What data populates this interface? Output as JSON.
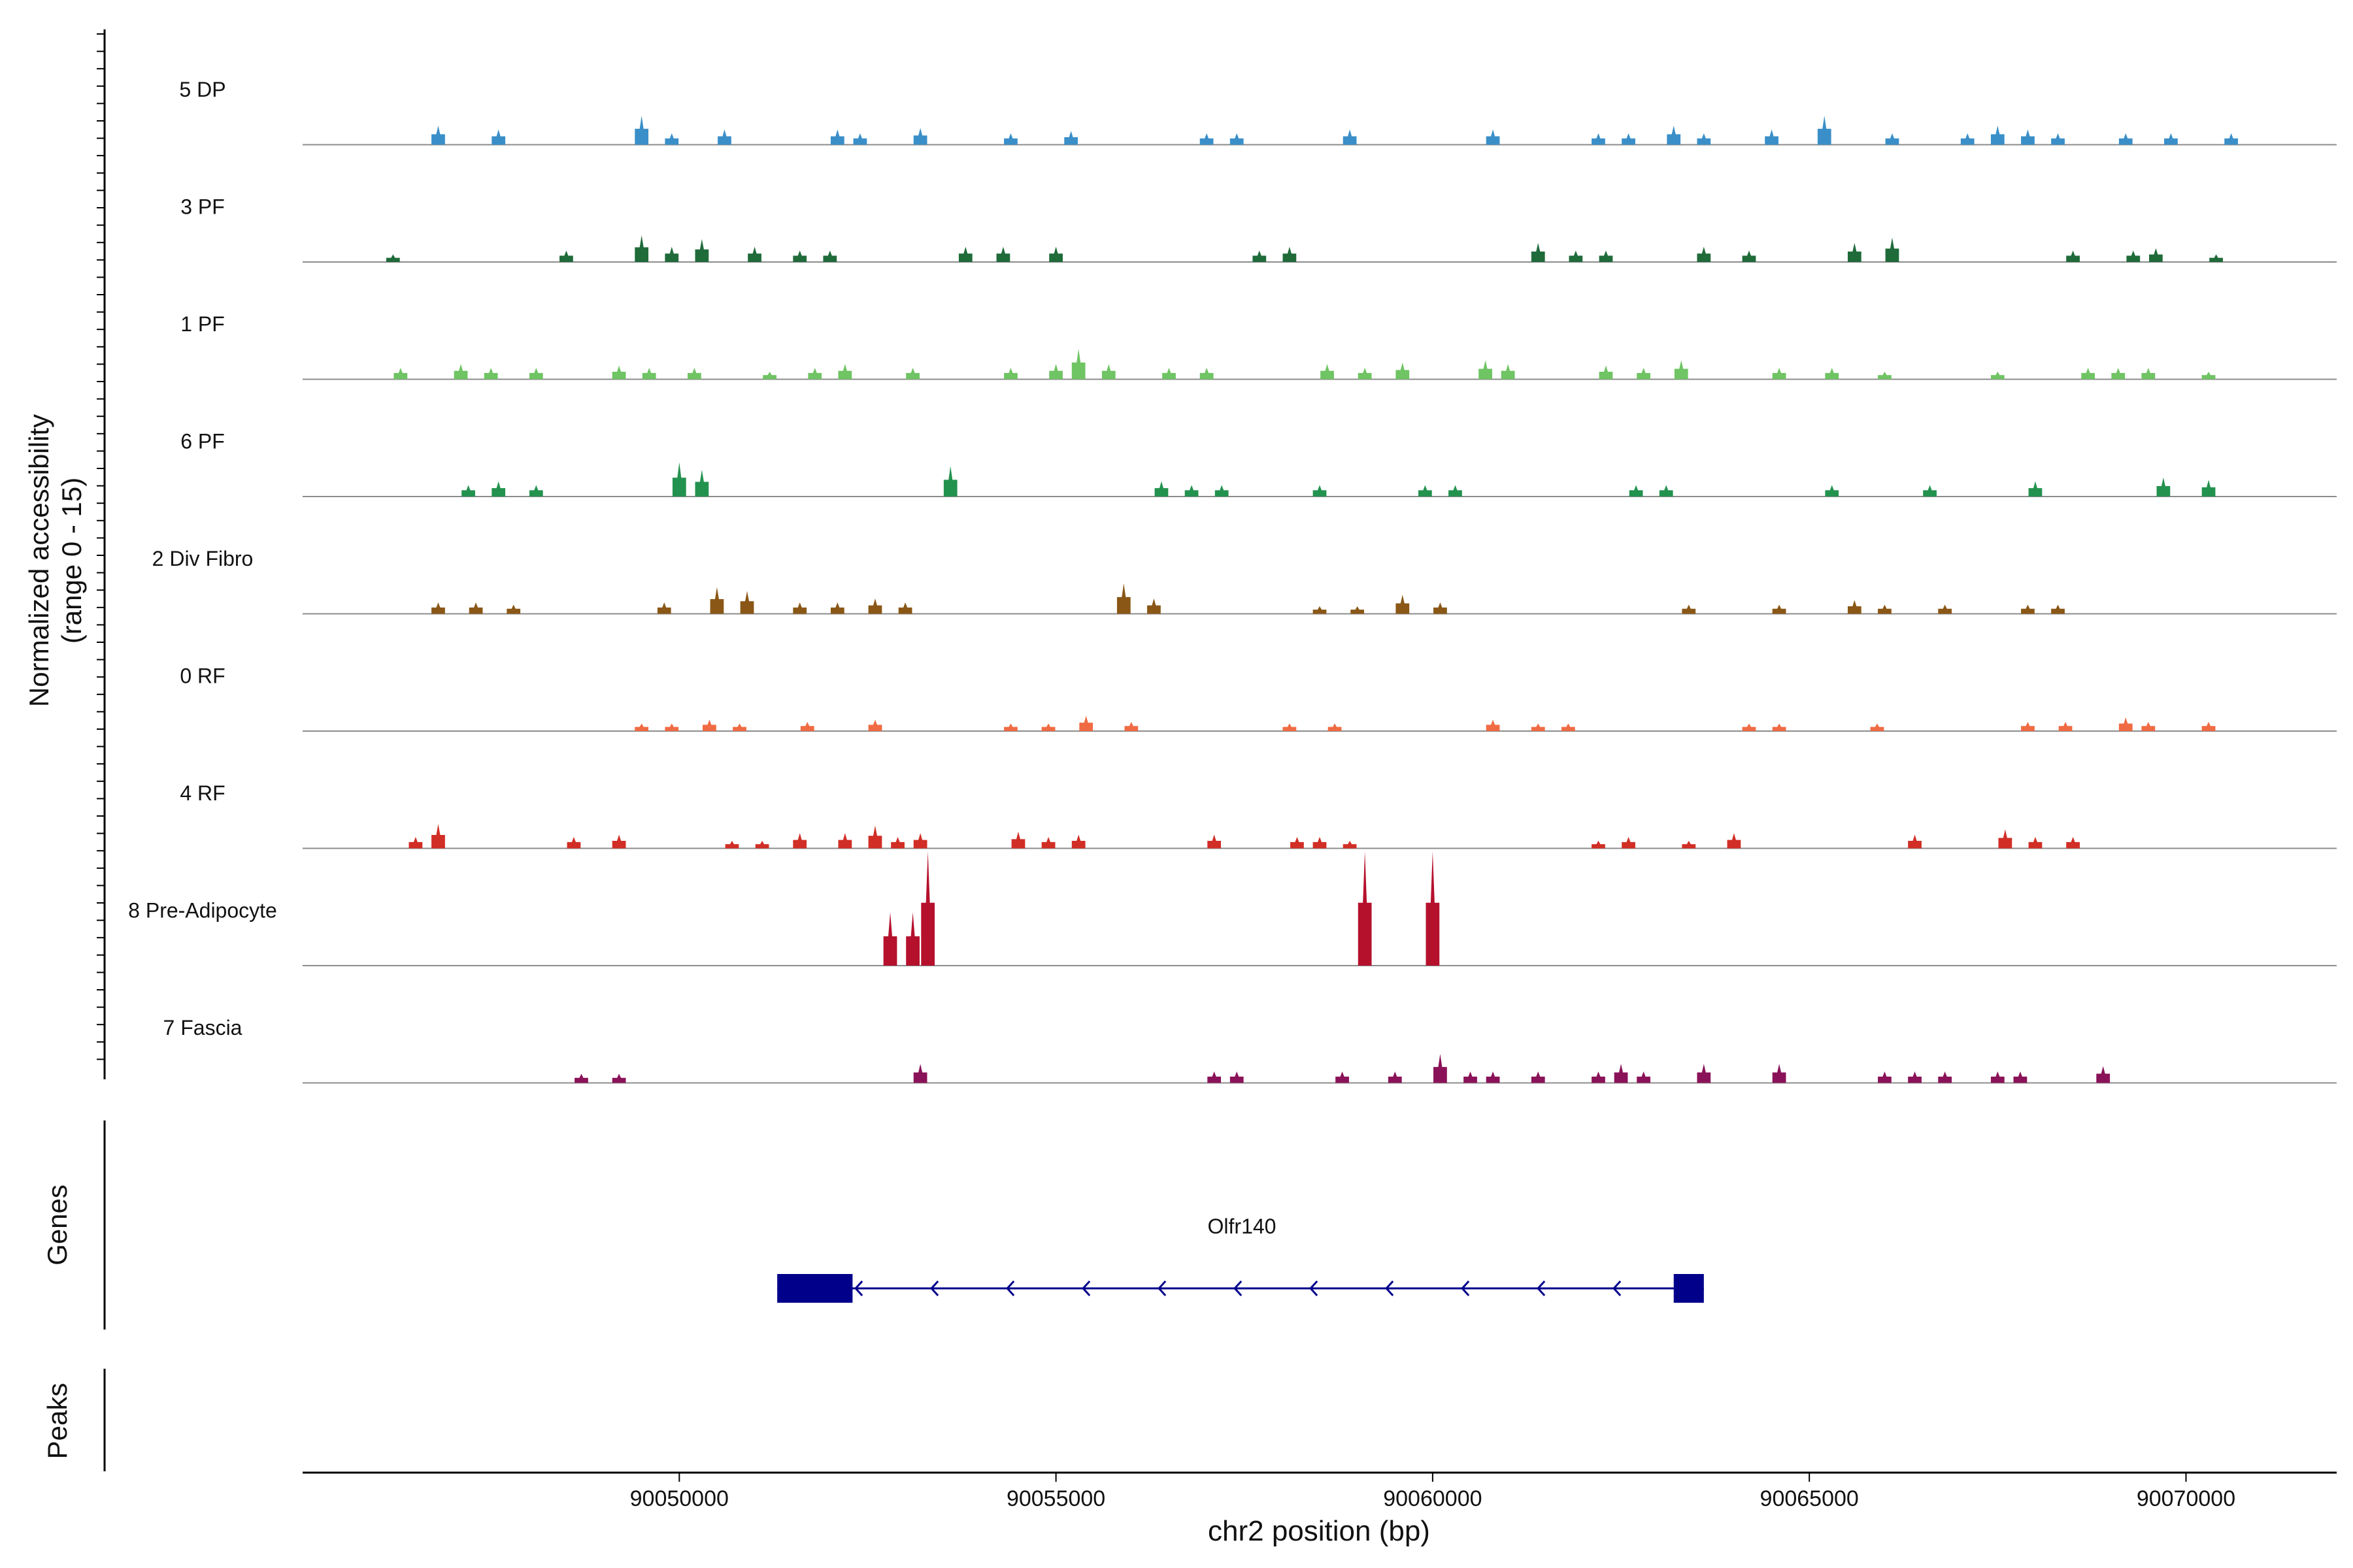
{
  "chart_data": {
    "type": "area",
    "title": "",
    "xlabel": "chr2 position (bp)",
    "xlim": [
      90045000,
      90072000
    ],
    "x_ticks": [
      90050000,
      90055000,
      90060000,
      90065000,
      90070000
    ],
    "x_tick_labels": [
      "90050000",
      "90055000",
      "90060000",
      "90065000",
      "90070000"
    ],
    "coverage_ylabel": [
      "Normalized accessibility",
      "(range 0 - 15)"
    ],
    "ylim": [
      0,
      15
    ],
    "genes_label": "Genes",
    "peaks_label": "Peaks",
    "tracks": [
      {
        "name": "5 DP",
        "color": "#3a8fc9",
        "peaks": [
          [
            90046800,
            2.5
          ],
          [
            90047600,
            2
          ],
          [
            90049500,
            3.8
          ],
          [
            90049900,
            1.5
          ],
          [
            90050600,
            2
          ],
          [
            90052100,
            2
          ],
          [
            90052400,
            1.5
          ],
          [
            90053200,
            2.2
          ],
          [
            90054400,
            1.5
          ],
          [
            90055200,
            1.8
          ],
          [
            90057000,
            1.5
          ],
          [
            90057400,
            1.5
          ],
          [
            90058900,
            2
          ],
          [
            90060800,
            2
          ],
          [
            90062200,
            1.5
          ],
          [
            90062600,
            1.5
          ],
          [
            90063200,
            2.5
          ],
          [
            90063600,
            1.5
          ],
          [
            90064500,
            2
          ],
          [
            90065200,
            3.8
          ],
          [
            90066100,
            1.5
          ],
          [
            90067100,
            1.5
          ],
          [
            90067500,
            2.5
          ],
          [
            90067900,
            2
          ],
          [
            90068300,
            1.5
          ],
          [
            90069200,
            1.5
          ],
          [
            90069800,
            1.5
          ],
          [
            90070600,
            1.5
          ]
        ]
      },
      {
        "name": "3 PF",
        "color": "#1f6b3a",
        "peaks": [
          [
            90046200,
            1
          ],
          [
            90048500,
            1.5
          ],
          [
            90049500,
            3.5
          ],
          [
            90049900,
            2
          ],
          [
            90050300,
            3
          ],
          [
            90051000,
            2
          ],
          [
            90051600,
            1.5
          ],
          [
            90052000,
            1.5
          ],
          [
            90053800,
            2
          ],
          [
            90054300,
            2
          ],
          [
            90055000,
            2
          ],
          [
            90057700,
            1.5
          ],
          [
            90058100,
            2
          ],
          [
            90061400,
            2.5
          ],
          [
            90061900,
            1.5
          ],
          [
            90062300,
            1.5
          ],
          [
            90063600,
            2
          ],
          [
            90064200,
            1.5
          ],
          [
            90065600,
            2.5
          ],
          [
            90066100,
            3.2
          ],
          [
            90068500,
            1.5
          ],
          [
            90069300,
            1.5
          ],
          [
            90069600,
            1.8
          ],
          [
            90070400,
            1
          ]
        ]
      },
      {
        "name": "1 PF",
        "color": "#6fc463",
        "peaks": [
          [
            90046300,
            1.5
          ],
          [
            90047100,
            2
          ],
          [
            90047500,
            1.5
          ],
          [
            90048100,
            1.5
          ],
          [
            90049200,
            1.8
          ],
          [
            90049600,
            1.5
          ],
          [
            90050200,
            1.5
          ],
          [
            90051200,
            1
          ],
          [
            90051800,
            1.5
          ],
          [
            90052200,
            2
          ],
          [
            90053100,
            1.5
          ],
          [
            90054400,
            1.5
          ],
          [
            90055000,
            2
          ],
          [
            90055300,
            4
          ],
          [
            90055700,
            2
          ],
          [
            90056500,
            1.5
          ],
          [
            90057000,
            1.5
          ],
          [
            90058600,
            2
          ],
          [
            90059100,
            1.5
          ],
          [
            90059600,
            2.2
          ],
          [
            90060700,
            2.5
          ],
          [
            90061000,
            2
          ],
          [
            90062300,
            1.8
          ],
          [
            90062800,
            1.5
          ],
          [
            90063300,
            2.5
          ],
          [
            90064600,
            1.5
          ],
          [
            90065300,
            1.5
          ],
          [
            90066000,
            1
          ],
          [
            90067500,
            1
          ],
          [
            90068700,
            1.5
          ],
          [
            90069100,
            1.5
          ],
          [
            90069500,
            1.5
          ],
          [
            90070300,
            1
          ]
        ]
      },
      {
        "name": "6 PF",
        "color": "#24924f",
        "peaks": [
          [
            90047200,
            1.5
          ],
          [
            90047600,
            2
          ],
          [
            90048100,
            1.5
          ],
          [
            90050000,
            4.5
          ],
          [
            90050300,
            3.5
          ],
          [
            90053600,
            4
          ],
          [
            90056400,
            2
          ],
          [
            90056800,
            1.5
          ],
          [
            90057200,
            1.5
          ],
          [
            90058500,
            1.5
          ],
          [
            90059900,
            1.5
          ],
          [
            90060300,
            1.5
          ],
          [
            90062700,
            1.5
          ],
          [
            90063100,
            1.5
          ],
          [
            90065300,
            1.5
          ],
          [
            90066600,
            1.5
          ],
          [
            90068000,
            2
          ],
          [
            90069700,
            2.5
          ],
          [
            90070300,
            2.2
          ]
        ]
      },
      {
        "name": "2 Div Fibro",
        "color": "#8a5716",
        "peaks": [
          [
            90046800,
            1.5
          ],
          [
            90047300,
            1.5
          ],
          [
            90047800,
            1.2
          ],
          [
            90049800,
            1.5
          ],
          [
            90050500,
            3.5
          ],
          [
            90050900,
            3
          ],
          [
            90051600,
            1.5
          ],
          [
            90052100,
            1.5
          ],
          [
            90052600,
            2
          ],
          [
            90053000,
            1.5
          ],
          [
            90055900,
            4
          ],
          [
            90056300,
            2
          ],
          [
            90058500,
            1
          ],
          [
            90059000,
            1
          ],
          [
            90059600,
            2.5
          ],
          [
            90060100,
            1.5
          ],
          [
            90063400,
            1.2
          ],
          [
            90064600,
            1.2
          ],
          [
            90065600,
            1.8
          ],
          [
            90066000,
            1.2
          ],
          [
            90066800,
            1.2
          ],
          [
            90067900,
            1.2
          ],
          [
            90068300,
            1.2
          ]
        ]
      },
      {
        "name": "0 RF",
        "color": "#f06b43",
        "peaks": [
          [
            90049500,
            1
          ],
          [
            90049900,
            1
          ],
          [
            90050400,
            1.5
          ],
          [
            90050800,
            1
          ],
          [
            90051700,
            1.2
          ],
          [
            90052600,
            1.5
          ],
          [
            90054400,
            1
          ],
          [
            90054900,
            1
          ],
          [
            90055400,
            2
          ],
          [
            90056000,
            1.2
          ],
          [
            90058100,
            1
          ],
          [
            90058700,
            1
          ],
          [
            90060800,
            1.5
          ],
          [
            90061400,
            1
          ],
          [
            90061800,
            1
          ],
          [
            90064200,
            1
          ],
          [
            90064600,
            1
          ],
          [
            90065900,
            1
          ],
          [
            90067900,
            1.2
          ],
          [
            90068400,
            1.2
          ],
          [
            90069200,
            1.8
          ],
          [
            90069500,
            1.2
          ],
          [
            90070300,
            1.2
          ]
        ]
      },
      {
        "name": "4 RF",
        "color": "#d12e26",
        "peaks": [
          [
            90046500,
            1.5
          ],
          [
            90046800,
            3.2
          ],
          [
            90048600,
            1.5
          ],
          [
            90049200,
            1.8
          ],
          [
            90050700,
            1
          ],
          [
            90051100,
            1
          ],
          [
            90051600,
            2
          ],
          [
            90052200,
            2
          ],
          [
            90052600,
            3
          ],
          [
            90052900,
            1.5
          ],
          [
            90053200,
            2
          ],
          [
            90054500,
            2.2
          ],
          [
            90054900,
            1.5
          ],
          [
            90055300,
            1.8
          ],
          [
            90057100,
            1.8
          ],
          [
            90058200,
            1.5
          ],
          [
            90058500,
            1.5
          ],
          [
            90058900,
            1
          ],
          [
            90062200,
            1
          ],
          [
            90062600,
            1.5
          ],
          [
            90063400,
            1
          ],
          [
            90064000,
            2
          ],
          [
            90066400,
            1.8
          ],
          [
            90067600,
            2.5
          ],
          [
            90068000,
            1.5
          ],
          [
            90068500,
            1.5
          ]
        ]
      },
      {
        "name": "8 Pre-Adipocyte",
        "color": "#b5112d",
        "peaks": [
          [
            90052800,
            7
          ],
          [
            90053100,
            7
          ],
          [
            90053300,
            15
          ],
          [
            90059100,
            15
          ],
          [
            90060000,
            15
          ]
        ]
      },
      {
        "name": "7 Fascia",
        "color": "#8a1258",
        "peaks": [
          [
            90048700,
            1.2
          ],
          [
            90049200,
            1.2
          ],
          [
            90053200,
            2.5
          ],
          [
            90057100,
            1.5
          ],
          [
            90057400,
            1.5
          ],
          [
            90058800,
            1.5
          ],
          [
            90059500,
            1.5
          ],
          [
            90060100,
            3.8
          ],
          [
            90060500,
            1.5
          ],
          [
            90060800,
            1.5
          ],
          [
            90061400,
            1.5
          ],
          [
            90062200,
            1.5
          ],
          [
            90062500,
            2.5
          ],
          [
            90062800,
            1.5
          ],
          [
            90063600,
            2.5
          ],
          [
            90064600,
            2.5
          ],
          [
            90066000,
            1.5
          ],
          [
            90066400,
            1.5
          ],
          [
            90066800,
            1.5
          ],
          [
            90067500,
            1.5
          ],
          [
            90067800,
            1.5
          ],
          [
            90068900,
            2.2
          ]
        ]
      }
    ],
    "genes": [
      {
        "name": "Olfr140",
        "start": 90051300,
        "end": 90063600,
        "strand": "-",
        "color": "#00008b",
        "exons": [
          [
            90051300,
            90052300
          ],
          [
            90063200,
            90063600
          ]
        ]
      }
    ]
  }
}
